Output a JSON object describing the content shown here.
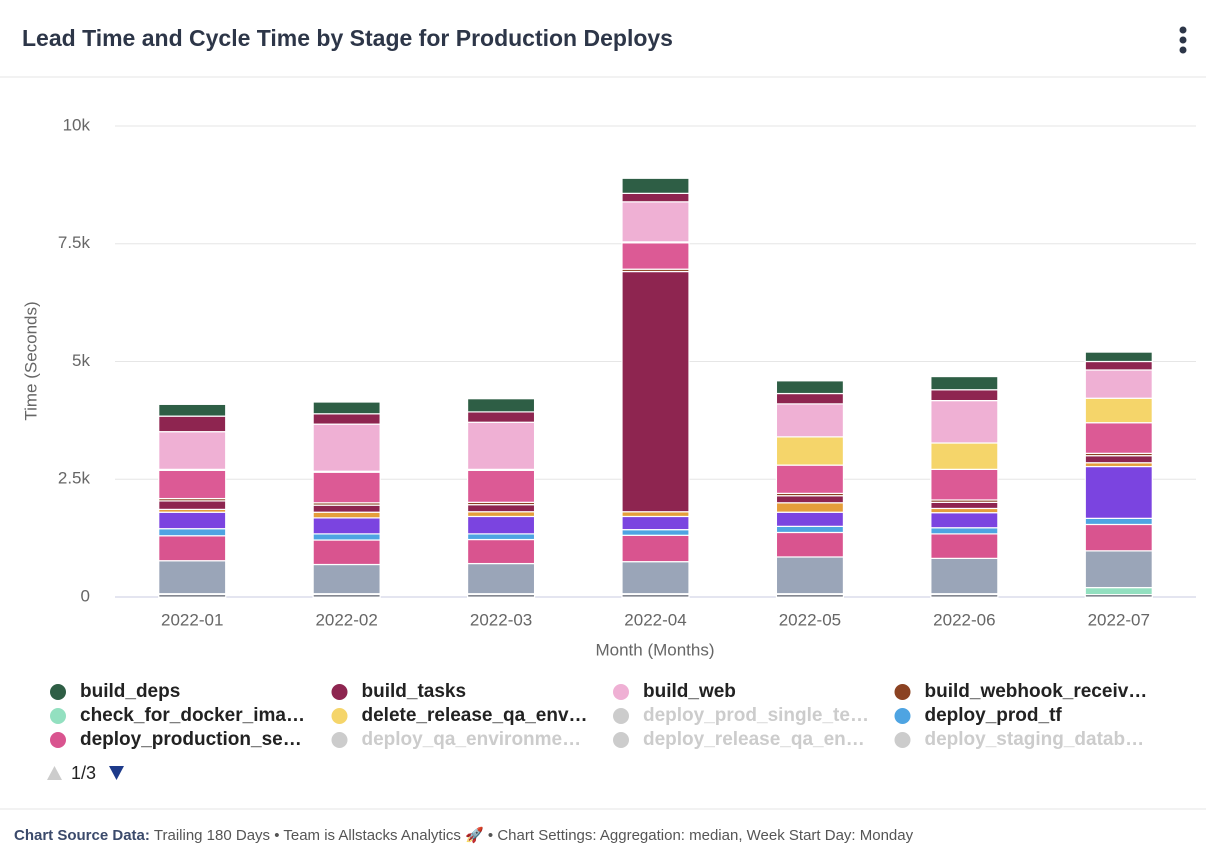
{
  "header": {
    "title": "Lead Time and Cycle Time by Stage for Production Deploys"
  },
  "chart_data": {
    "type": "stacked-bar",
    "ylabel": "Time (Seconds)",
    "xlabel": "Month (Months)",
    "categories": [
      "2022-01",
      "2022-02",
      "2022-03",
      "2022-04",
      "2022-05",
      "2022-06",
      "2022-07"
    ],
    "ylim": [
      0,
      10000
    ],
    "yticks": [
      0,
      {
        "value": 2500,
        "label": "2.5k"
      },
      {
        "value": 5000,
        "label": "5k"
      },
      {
        "value": 7500,
        "label": "7.5k"
      },
      {
        "value": 10000,
        "label": "10k"
      }
    ],
    "grid": true,
    "series": [
      {
        "name": "build_deps",
        "color": "#2e5e45",
        "values": [
          250,
          250,
          280,
          320,
          270,
          280,
          200
        ]
      },
      {
        "name": "build_tasks",
        "color": "#8e2550",
        "values": [
          330,
          220,
          220,
          180,
          220,
          230,
          180
        ]
      },
      {
        "name": "build_web",
        "color": "#efb0d4",
        "values": [
          800,
          1000,
          1000,
          850,
          700,
          900,
          600
        ]
      },
      {
        "name": "build_webhook_receiv…",
        "color": "#8b4222",
        "values": [
          50,
          50,
          50,
          50,
          50,
          50,
          50
        ]
      },
      {
        "name": "check_for_docker_ima…",
        "color": "#93e0c0",
        "values": [
          20,
          20,
          20,
          20,
          20,
          20,
          150
        ]
      },
      {
        "name": "delete_release_qa_env…",
        "color": "#f5d56a",
        "values": [
          20,
          20,
          20,
          20,
          600,
          560,
          520
        ]
      },
      {
        "name": "deploy_prod_single_te…",
        "color": "#cccccc",
        "hidden": true
      },
      {
        "name": "deploy_prod_tf",
        "color": "#4ea4e2",
        "values": [
          150,
          130,
          120,
          120,
          130,
          130,
          130
        ]
      },
      {
        "name": "deploy_production_se…",
        "color": "#d9548f",
        "values": [
          530,
          520,
          510,
          560,
          520,
          520,
          560
        ]
      },
      {
        "name": "deploy_qa_environme…",
        "color": "#cccccc",
        "hidden": true
      },
      {
        "name": "deploy_release_qa_en…",
        "color": "#cccccc",
        "hidden": true
      },
      {
        "name": "deploy_staging_datab…",
        "color": "#cccccc",
        "hidden": true
      },
      {
        "color": "#3b4150",
        "values": [
          50,
          50,
          50,
          50,
          50,
          50,
          50
        ]
      },
      {
        "color": "#9aa5b8",
        "values": [
          700,
          620,
          640,
          680,
          780,
          750,
          780
        ]
      },
      {
        "color": "#7b44e0",
        "values": [
          350,
          340,
          370,
          280,
          300,
          320,
          1100
        ]
      },
      {
        "color": "#e59e3a",
        "values": [
          60,
          120,
          100,
          100,
          200,
          90,
          80
        ]
      },
      {
        "color": "#8e2550",
        "values": [
          180,
          150,
          150,
          5100,
          150,
          130,
          150
        ]
      },
      {
        "color": "#dc5a95",
        "values": [
          600,
          650,
          680,
          560,
          600,
          650,
          650
        ]
      }
    ],
    "legend_page": "1/3"
  },
  "footer": {
    "label": "Chart Source Data:",
    "text": "Trailing 180 Days • Team is Allstacks Analytics 🚀 • Chart Settings: Aggregation: median, Week Start Day: Monday"
  }
}
